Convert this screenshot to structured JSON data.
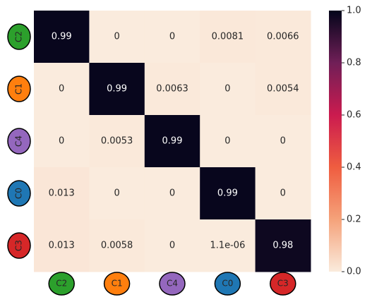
{
  "chart_data": {
    "type": "heatmap",
    "x_categories": [
      "C2",
      "C1",
      "C4",
      "C0",
      "C3"
    ],
    "y_categories": [
      "C2",
      "C1",
      "C4",
      "C0",
      "C3"
    ],
    "x_colors": [
      "#2ca02c",
      "#ff7f0e",
      "#9467bd",
      "#1f77b4",
      "#d62728"
    ],
    "y_colors": [
      "#2ca02c",
      "#ff7f0e",
      "#9467bd",
      "#1f77b4",
      "#d62728"
    ],
    "values": [
      [
        0.99,
        0,
        0,
        0.0081,
        0.0066
      ],
      [
        0,
        0.99,
        0.0063,
        0,
        0.0054
      ],
      [
        0,
        0.0053,
        0.99,
        0,
        0
      ],
      [
        0.013,
        0,
        0,
        0.99,
        0
      ],
      [
        0.013,
        0.0058,
        0,
        1.1e-06,
        0.98
      ]
    ],
    "value_labels": [
      [
        "0.99",
        "0",
        "0",
        "0.0081",
        "0.0066"
      ],
      [
        "0",
        "0.99",
        "0.0063",
        "0",
        "0.0054"
      ],
      [
        "0",
        "0.0053",
        "0.99",
        "0",
        "0"
      ],
      [
        "0.013",
        "0",
        "0",
        "0.99",
        "0"
      ],
      [
        "0.013",
        "0.0058",
        "0",
        "1.1e-06",
        "0.98"
      ]
    ],
    "colormap": [
      "#faebdd",
      "#f5a27a",
      "#ef5d40",
      "#cb1b4f",
      "#701f57",
      "#03051a"
    ],
    "zlim": [
      0,
      1
    ],
    "zticks": [
      {
        "value": 0,
        "label": "0.0"
      },
      0.2,
      0.4,
      0.6,
      0.8,
      {
        "value": 1,
        "label": "1.0"
      }
    ]
  }
}
